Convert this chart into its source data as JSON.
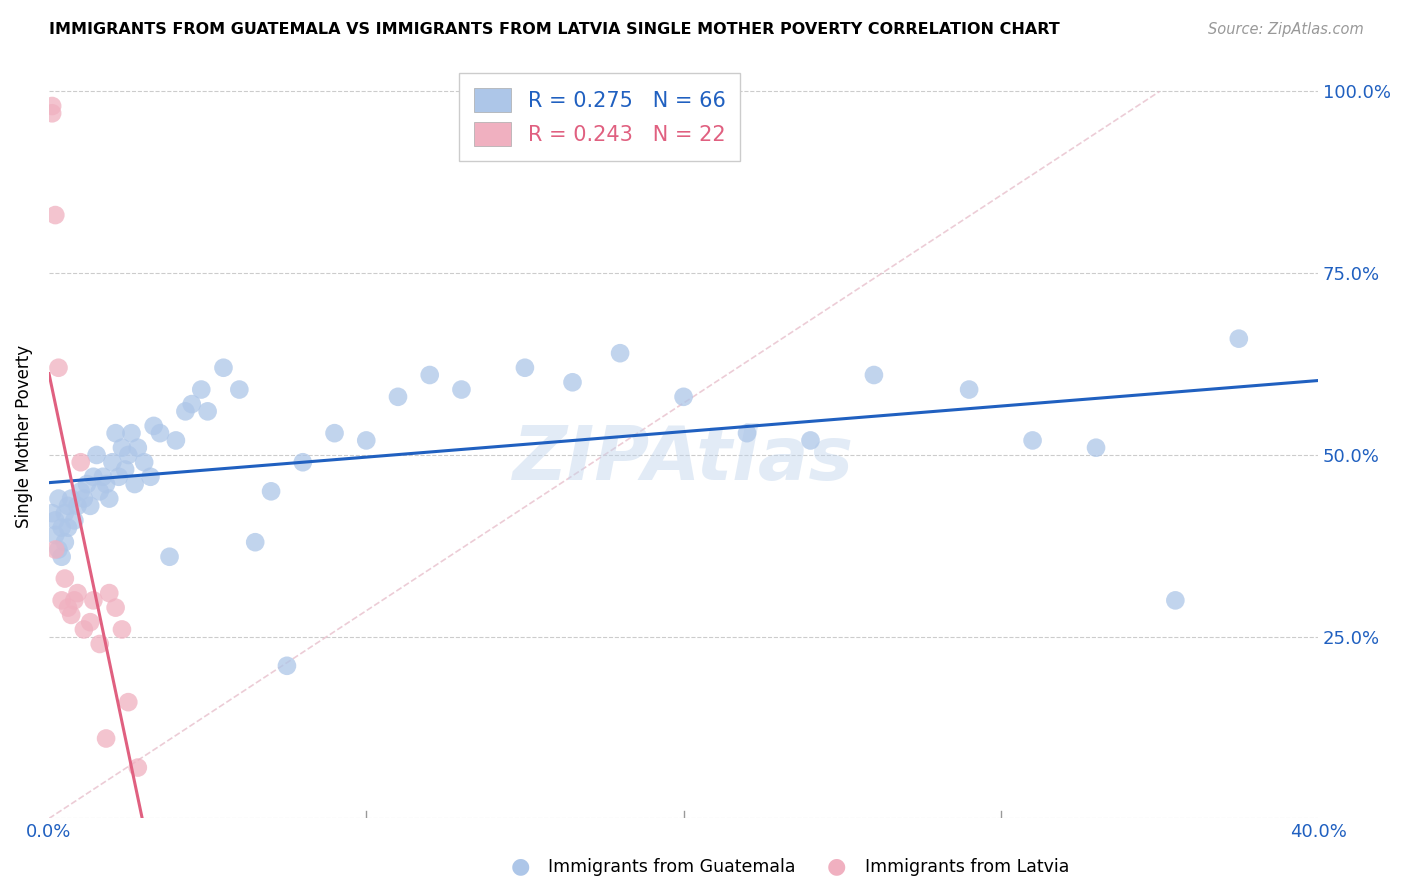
{
  "title": "IMMIGRANTS FROM GUATEMALA VS IMMIGRANTS FROM LATVIA SINGLE MOTHER POVERTY CORRELATION CHART",
  "source": "Source: ZipAtlas.com",
  "xlabel_blue": "Immigrants from Guatemala",
  "xlabel_pink": "Immigrants from Latvia",
  "ylabel": "Single Mother Poverty",
  "xlim": [
    0.0,
    0.4
  ],
  "ylim": [
    0.0,
    1.05
  ],
  "R_blue": 0.275,
  "N_blue": 66,
  "R_pink": 0.243,
  "N_pink": 22,
  "blue_color": "#adc6e8",
  "pink_color": "#f0b0c0",
  "line_blue": "#2060c0",
  "line_pink": "#e06080",
  "watermark": "ZIPAtlas",
  "guatemala_x": [
    0.001,
    0.002,
    0.002,
    0.003,
    0.003,
    0.004,
    0.004,
    0.005,
    0.005,
    0.006,
    0.006,
    0.007,
    0.008,
    0.009,
    0.01,
    0.011,
    0.012,
    0.013,
    0.014,
    0.015,
    0.016,
    0.017,
    0.018,
    0.019,
    0.02,
    0.021,
    0.022,
    0.023,
    0.024,
    0.025,
    0.026,
    0.027,
    0.028,
    0.03,
    0.032,
    0.033,
    0.035,
    0.038,
    0.04,
    0.043,
    0.045,
    0.048,
    0.05,
    0.055,
    0.06,
    0.065,
    0.07,
    0.075,
    0.08,
    0.09,
    0.1,
    0.11,
    0.12,
    0.13,
    0.15,
    0.165,
    0.18,
    0.2,
    0.22,
    0.24,
    0.26,
    0.29,
    0.31,
    0.33,
    0.355,
    0.375
  ],
  "guatemala_y": [
    0.42,
    0.41,
    0.39,
    0.44,
    0.37,
    0.4,
    0.36,
    0.38,
    0.42,
    0.43,
    0.4,
    0.44,
    0.41,
    0.43,
    0.45,
    0.44,
    0.46,
    0.43,
    0.47,
    0.5,
    0.45,
    0.47,
    0.46,
    0.44,
    0.49,
    0.53,
    0.47,
    0.51,
    0.48,
    0.5,
    0.53,
    0.46,
    0.51,
    0.49,
    0.47,
    0.54,
    0.53,
    0.36,
    0.52,
    0.56,
    0.57,
    0.59,
    0.56,
    0.62,
    0.59,
    0.38,
    0.45,
    0.21,
    0.49,
    0.53,
    0.52,
    0.58,
    0.61,
    0.59,
    0.62,
    0.6,
    0.64,
    0.58,
    0.53,
    0.52,
    0.61,
    0.59,
    0.52,
    0.51,
    0.3,
    0.66
  ],
  "latvia_x": [
    0.001,
    0.001,
    0.002,
    0.002,
    0.003,
    0.004,
    0.005,
    0.006,
    0.007,
    0.008,
    0.009,
    0.01,
    0.011,
    0.013,
    0.014,
    0.016,
    0.018,
    0.019,
    0.021,
    0.023,
    0.025,
    0.028
  ],
  "latvia_y": [
    0.98,
    0.97,
    0.83,
    0.37,
    0.62,
    0.3,
    0.33,
    0.29,
    0.28,
    0.3,
    0.31,
    0.49,
    0.26,
    0.27,
    0.3,
    0.24,
    0.11,
    0.31,
    0.29,
    0.26,
    0.16,
    0.07
  ],
  "diag_color": "#e8b0c0",
  "diag_style": "--"
}
